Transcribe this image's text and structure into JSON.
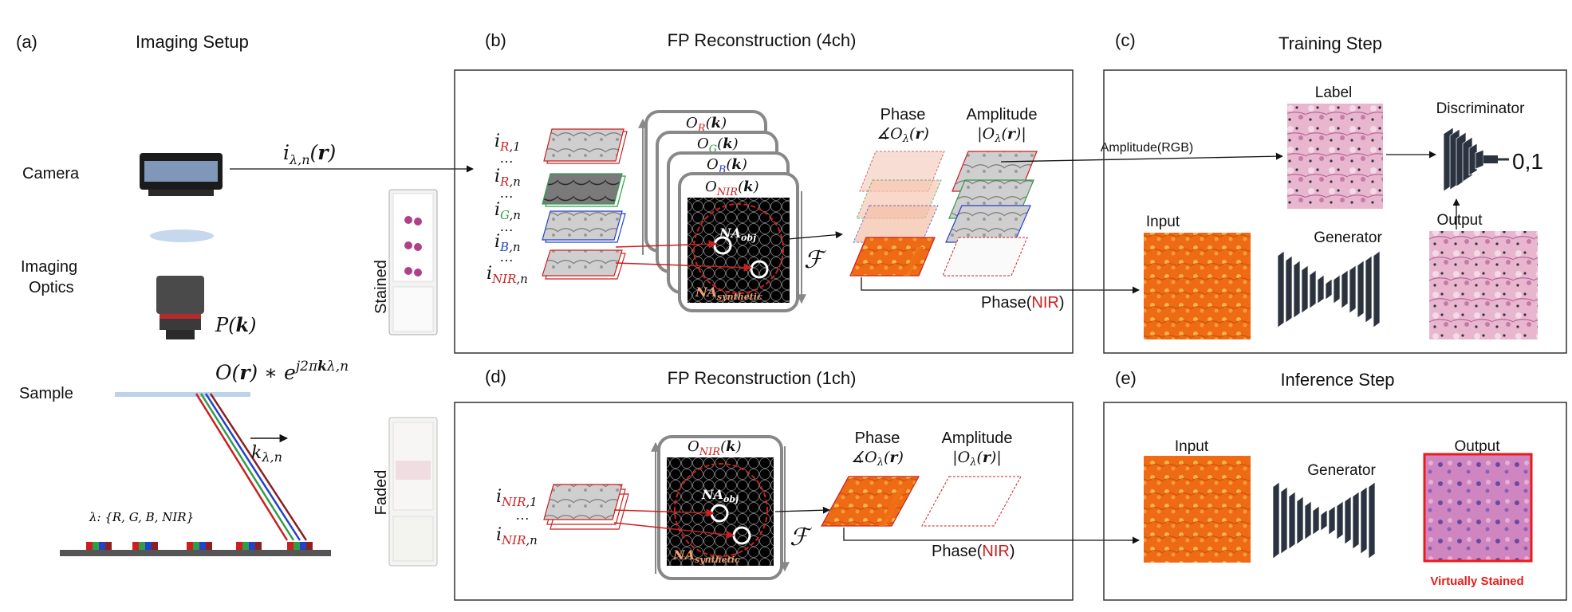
{
  "panels": {
    "a": {
      "letter": "(a)",
      "title": "Imaging Setup",
      "camera": "Camera",
      "optics_l1": "Imaging",
      "optics_l2": "Optics",
      "sample": "Sample",
      "stained": "Stained",
      "faded": "Faded",
      "lambda_set": "λ: {R, G, B, NIR}"
    },
    "b": {
      "letter": "(b)",
      "title": "FP Reconstruction (4ch)"
    },
    "c": {
      "letter": "(c)",
      "title": "Training Step",
      "label": "Label",
      "discriminator": "Discriminator",
      "output_score": "0,1",
      "amplitude_rgb": "Amplitude(RGB)",
      "input": "Input",
      "generator": "Generator",
      "output": "Output"
    },
    "d": {
      "letter": "(d)",
      "title": "FP Reconstruction (1ch)"
    },
    "e": {
      "letter": "(e)",
      "title": "Inference Step",
      "input": "Input",
      "generator": "Generator",
      "output": "Output",
      "virtually_stained": "Virtually Stained"
    }
  },
  "common": {
    "phase": "Phase",
    "amplitude": "Amplitude",
    "phase_nir_prefix": "Phase(",
    "phase_nir_nir": "NIR",
    "phase_nir_suffix": ")"
  },
  "colors": {
    "red": "#cc1f1f",
    "green": "#2e9e4a",
    "blue": "#2541c8",
    "orange": "#f07a1c",
    "frame": "#333333",
    "gray_box": "#888888"
  }
}
